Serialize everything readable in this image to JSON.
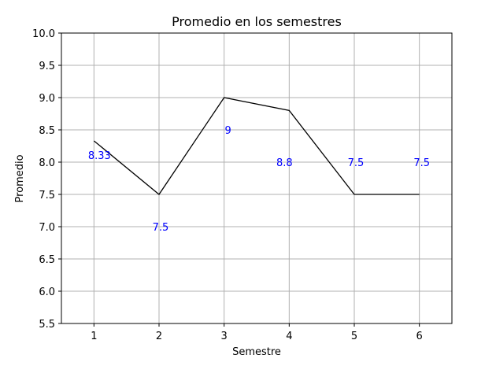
{
  "chart_data": {
    "type": "line",
    "title": "Promedio en los semestres",
    "xlabel": "Semestre",
    "ylabel": "Promedio",
    "x": [
      1,
      2,
      3,
      4,
      5,
      6
    ],
    "series": [
      {
        "values": [
          8.33,
          7.5,
          9,
          8.8,
          7.5,
          7.5
        ]
      }
    ],
    "data_labels": [
      "8.33",
      "7.5",
      "9",
      "8.8",
      "7.5",
      "7.5"
    ],
    "xlim": [
      0.5,
      6.5
    ],
    "ylim": [
      5.5,
      10.0
    ],
    "xticks": [
      "1",
      "2",
      "3",
      "4",
      "5",
      "6"
    ],
    "yticks": [
      "5.5",
      "6.0",
      "6.5",
      "7.0",
      "7.5",
      "8.0",
      "8.5",
      "9.0",
      "9.5",
      "10.0"
    ],
    "grid": true,
    "colors": {
      "line": "#000000",
      "labels": "#0000ff",
      "grid": "#b0b0b0"
    }
  }
}
